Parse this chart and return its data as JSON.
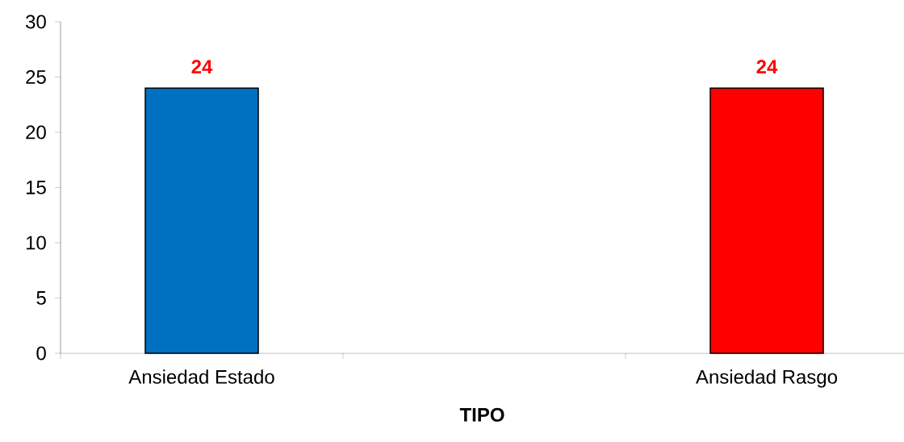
{
  "chart_data": {
    "type": "bar",
    "xlabel": "TIPO",
    "categories": [
      "Ansiedad Estado",
      null,
      "Ansiedad Rasgo"
    ],
    "values": [
      24,
      null,
      24
    ],
    "colors": [
      "#0070c0",
      null,
      "#ff0000"
    ],
    "ylim": [
      0,
      30
    ],
    "yticks": [
      0,
      5,
      10,
      15,
      20,
      25,
      30
    ],
    "data_labels": true,
    "grid": false
  }
}
